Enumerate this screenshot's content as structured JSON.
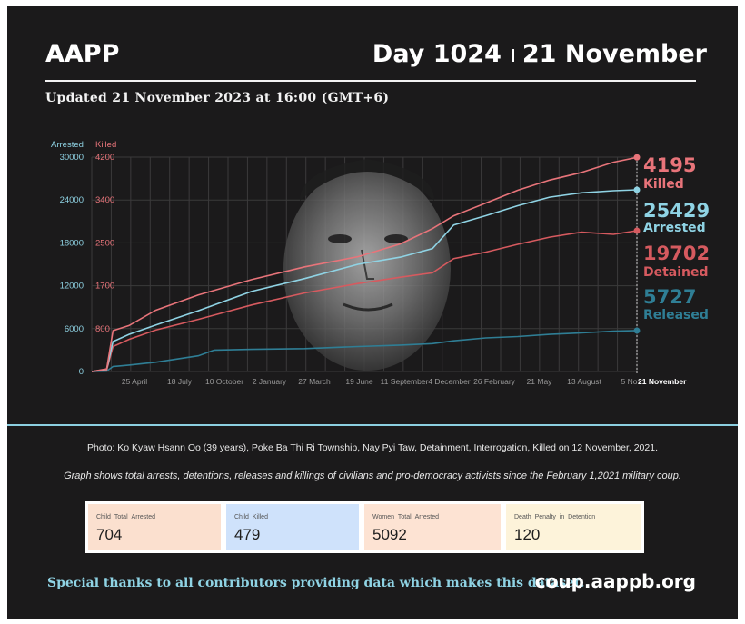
{
  "header": {
    "org": "AAPP",
    "day_label": "Day 1024",
    "date_label": "21 November",
    "updated": "Updated 21 November 2023 at 16:00 (GMT+6)"
  },
  "colors": {
    "arrested": "#8fd3e4",
    "killed": "#e8747a",
    "detained": "#d65a5f",
    "released": "#2f7e95",
    "grid": "#3b3a3b"
  },
  "chart_data": {
    "type": "line",
    "left_axis_title": "Arrested",
    "right_axis_title": "Killed",
    "arrested_axis": {
      "ticks": [
        0,
        6000,
        12000,
        18000,
        24000,
        30000
      ],
      "ylim": [
        0,
        30000
      ]
    },
    "killed_axis": {
      "ticks": [
        "800",
        "1700",
        "2500",
        "3400",
        "4200"
      ],
      "tick_positions": [
        6000,
        12000,
        18000,
        24000,
        30000
      ]
    },
    "x_tick_labels": [
      "25 April",
      "18 July",
      "10 October",
      "2 January",
      "27 March",
      "19 June",
      "11 September",
      "4 December",
      "26 February",
      "21 May",
      "13 August",
      "5 No"
    ],
    "x_end_label": "21 November",
    "x_range_days": [
      0,
      1024
    ],
    "series": [
      {
        "name": "Killed",
        "total": "4195",
        "color_key": "killed",
        "points": [
          [
            0,
            0
          ],
          [
            28,
            50
          ],
          [
            40,
            800
          ],
          [
            70,
            900
          ],
          [
            120,
            1200
          ],
          [
            200,
            1500
          ],
          [
            300,
            1800
          ],
          [
            400,
            2050
          ],
          [
            500,
            2250
          ],
          [
            580,
            2500
          ],
          [
            640,
            2800
          ],
          [
            680,
            3050
          ],
          [
            740,
            3300
          ],
          [
            800,
            3550
          ],
          [
            860,
            3750
          ],
          [
            920,
            3900
          ],
          [
            980,
            4100
          ],
          [
            1024,
            4195
          ]
        ]
      },
      {
        "name": "Arrested",
        "total": "25429",
        "color_key": "arrested",
        "points": [
          [
            0,
            0
          ],
          [
            28,
            300
          ],
          [
            40,
            4200
          ],
          [
            70,
            5200
          ],
          [
            120,
            6500
          ],
          [
            200,
            8500
          ],
          [
            300,
            11200
          ],
          [
            400,
            13000
          ],
          [
            500,
            15000
          ],
          [
            580,
            16000
          ],
          [
            640,
            17200
          ],
          [
            680,
            20500
          ],
          [
            740,
            21800
          ],
          [
            800,
            23200
          ],
          [
            860,
            24400
          ],
          [
            920,
            25000
          ],
          [
            980,
            25300
          ],
          [
            1024,
            25429
          ]
        ]
      },
      {
        "name": "Detained",
        "total": "19702",
        "color_key": "detained",
        "points": [
          [
            0,
            0
          ],
          [
            28,
            200
          ],
          [
            40,
            3500
          ],
          [
            70,
            4500
          ],
          [
            120,
            5800
          ],
          [
            200,
            7300
          ],
          [
            300,
            9300
          ],
          [
            400,
            11000
          ],
          [
            500,
            12300
          ],
          [
            580,
            13200
          ],
          [
            640,
            13800
          ],
          [
            680,
            15800
          ],
          [
            740,
            16700
          ],
          [
            800,
            17800
          ],
          [
            860,
            18800
          ],
          [
            920,
            19500
          ],
          [
            980,
            19200
          ],
          [
            1024,
            19702
          ]
        ]
      },
      {
        "name": "Released",
        "total": "5727",
        "color_key": "released",
        "points": [
          [
            0,
            0
          ],
          [
            28,
            50
          ],
          [
            40,
            700
          ],
          [
            70,
            900
          ],
          [
            120,
            1300
          ],
          [
            200,
            2200
          ],
          [
            230,
            3000
          ],
          [
            300,
            3100
          ],
          [
            400,
            3200
          ],
          [
            500,
            3500
          ],
          [
            580,
            3700
          ],
          [
            640,
            3900
          ],
          [
            680,
            4300
          ],
          [
            740,
            4700
          ],
          [
            800,
            4900
          ],
          [
            860,
            5200
          ],
          [
            920,
            5400
          ],
          [
            980,
            5650
          ],
          [
            1024,
            5727
          ]
        ]
      }
    ]
  },
  "photo_caption": "Photo: Ko Kyaw Hsann Oo (39 years), Poke Ba Thi Ri Township, Nay Pyi Taw, Detainment, Interrogation, Killed on 12 November, 2021.",
  "graph_caption": "Graph shows total arrests, detentions, releases and killings of civilians and pro-democracy activists since the February 1,2021 military coup.",
  "stats": [
    {
      "label": "Child_Total_Arrested",
      "value": "704",
      "color": "#fbe0cf"
    },
    {
      "label": "Child_Killed",
      "value": "479",
      "color": "#cfe2fb"
    },
    {
      "label": "Women_Total_Arrested",
      "value": "5092",
      "color": "#fde3d3"
    },
    {
      "label": "Death_Penalty_in_Detention",
      "value": "120",
      "color": "#fdf3da"
    }
  ],
  "footer": {
    "thanks": "Special thanks to all contributors providing data which makes this dataset.",
    "site": "coup.aappb.org"
  }
}
